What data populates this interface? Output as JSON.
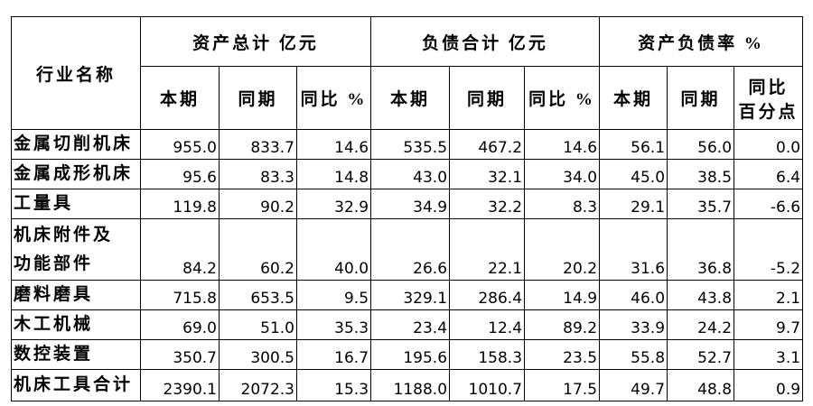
{
  "header": {
    "name_header": "行业名称",
    "group_titles": [
      "资产总计 亿元",
      "负债合计 亿元",
      "资产负债率 %"
    ],
    "sub_headers": [
      "本期",
      "同期",
      "同比 %",
      "本期",
      "同期",
      "同比 %",
      "本期",
      "同期",
      [
        "同比",
        "百分点"
      ]
    ]
  },
  "table": {
    "rows": [
      [
        "金属切削机床",
        "955.0",
        "833.7",
        "14.6",
        "535.5",
        "467.2",
        "14.6",
        "56.1",
        "56.0",
        "0.0"
      ],
      [
        "金属成形机床",
        "95.6",
        "83.3",
        "14.8",
        "43.0",
        "32.1",
        "34.0",
        "45.0",
        "38.5",
        "6.4"
      ],
      [
        "工量具",
        "119.8",
        "90.2",
        "32.9",
        "34.9",
        "32.2",
        "8.3",
        "29.1",
        "35.7",
        "-6.6"
      ],
      [
        [
          "机床附件及",
          "功能部件"
        ],
        "84.2",
        "60.2",
        "40.0",
        "26.6",
        "22.1",
        "20.2",
        "31.6",
        "36.8",
        "-5.2"
      ],
      [
        "磨料磨具",
        "715.8",
        "653.5",
        "9.5",
        "329.1",
        "286.4",
        "14.9",
        "46.0",
        "43.8",
        "2.1"
      ],
      [
        "木工机械",
        "69.0",
        "51.0",
        "35.3",
        "23.4",
        "12.4",
        "89.2",
        "33.9",
        "24.2",
        "9.7"
      ],
      [
        "数控装置",
        "350.7",
        "300.5",
        "16.7",
        "195.6",
        "158.3",
        "23.5",
        "55.8",
        "52.7",
        "3.1"
      ],
      [
        "机床工具合计",
        "2390.1",
        "2072.3",
        "15.3",
        "1188.0",
        "1010.7",
        "17.5",
        "49.7",
        "48.8",
        "0.9"
      ]
    ]
  }
}
